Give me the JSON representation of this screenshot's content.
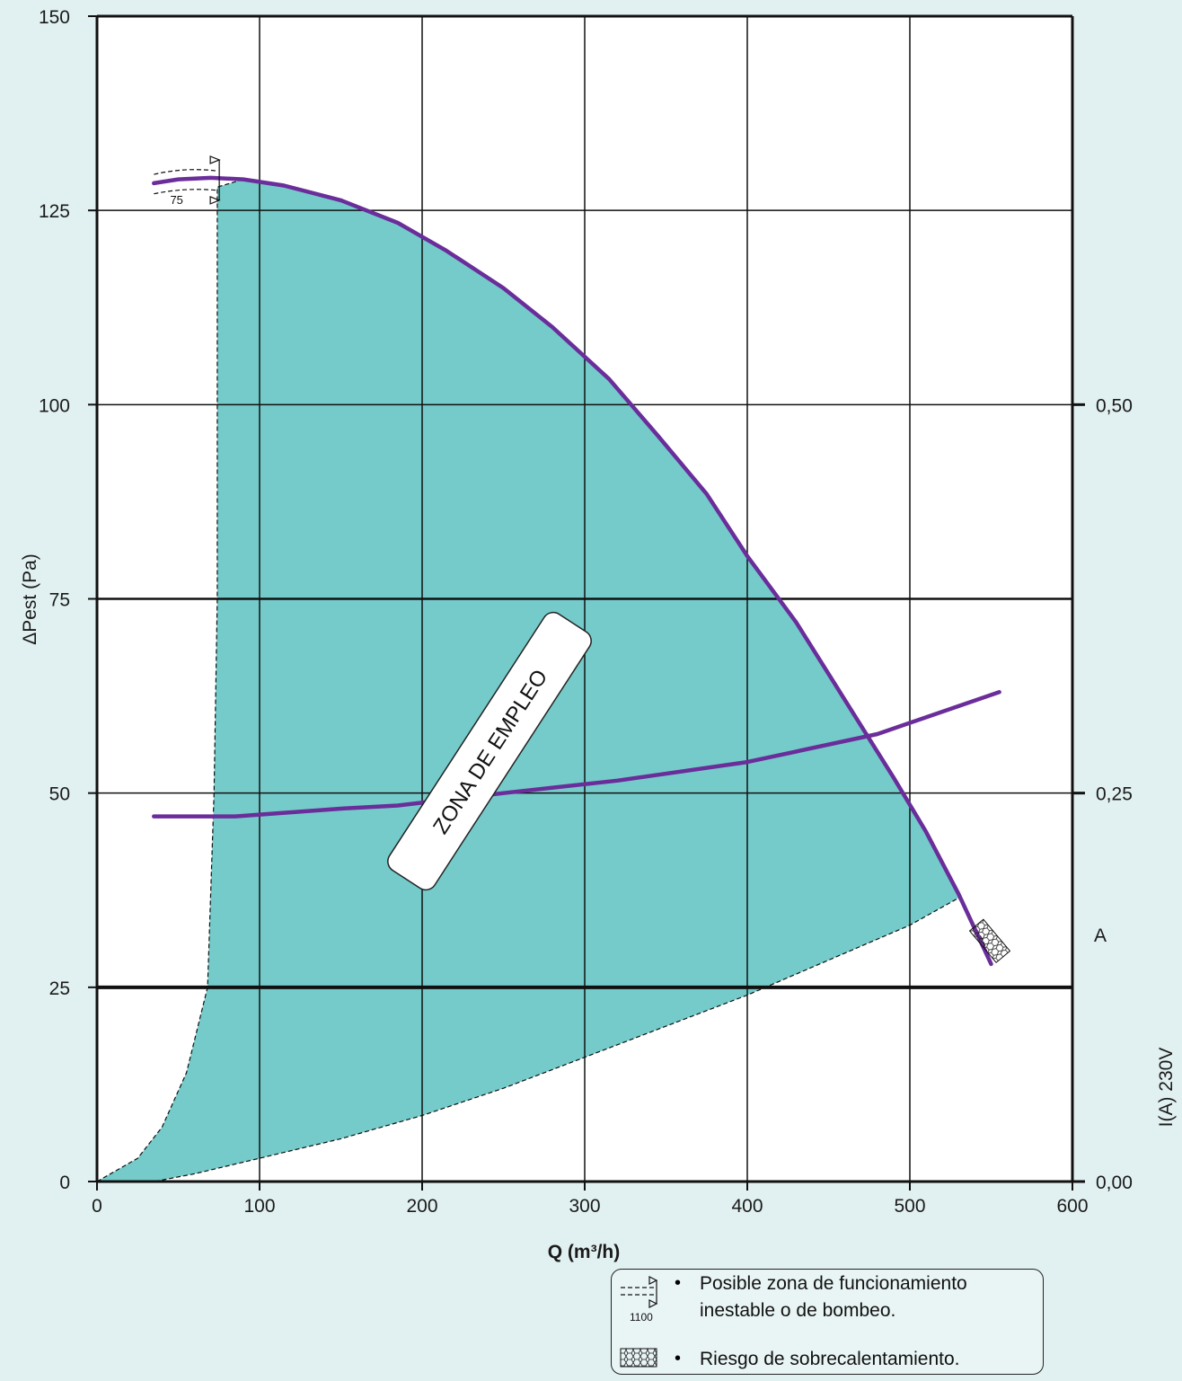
{
  "chart_data": {
    "type": "line",
    "title": "",
    "xlabel": "Q (m³/h)",
    "ylabel": "ΔPest (Pa)",
    "y2label": "I(A) 230V",
    "y2unit": "A",
    "xlim": [
      0,
      600
    ],
    "ylim": [
      0,
      150
    ],
    "y2lim": [
      0,
      0.75
    ],
    "x_ticks": [
      "0",
      "100",
      "200",
      "300",
      "400",
      "500",
      "600"
    ],
    "y_ticks": [
      "0",
      "25",
      "50",
      "75",
      "100",
      "125",
      "150"
    ],
    "y2_ticks": [
      "0,00",
      "0,25",
      "0,50"
    ],
    "grid": true,
    "zone_label": "ZONA DE EMPLEO",
    "series": [
      {
        "name": "",
        "axis": "left",
        "points": [
          [
            35,
            128.5
          ],
          [
            50,
            129
          ],
          [
            70,
            129.2
          ],
          [
            90,
            129
          ],
          [
            115,
            128.2
          ],
          [
            150,
            126.3
          ],
          [
            185,
            123.4
          ],
          [
            215,
            119.8
          ],
          [
            250,
            115
          ],
          [
            280,
            110
          ],
          [
            315,
            103.3
          ],
          [
            345,
            96
          ],
          [
            375,
            88.5
          ],
          [
            400,
            80.5
          ],
          [
            430,
            72
          ],
          [
            460,
            62
          ],
          [
            490,
            52
          ],
          [
            510,
            45
          ],
          [
            530,
            37
          ],
          [
            550,
            28
          ]
        ]
      },
      {
        "name": "",
        "axis": "right",
        "points": [
          [
            35,
            0.235
          ],
          [
            85,
            0.235
          ],
          [
            150,
            0.24
          ],
          [
            185,
            0.242
          ],
          [
            250,
            0.25
          ],
          [
            320,
            0.258
          ],
          [
            400,
            0.27
          ],
          [
            480,
            0.288
          ],
          [
            555,
            0.315
          ]
        ]
      }
    ],
    "zone_boundary": {
      "left": [
        [
          0,
          0
        ],
        [
          25,
          3
        ],
        [
          40,
          7
        ],
        [
          55,
          14
        ],
        [
          68,
          25
        ],
        [
          72,
          50
        ],
        [
          74,
          75
        ],
        [
          74,
          100
        ],
        [
          74,
          128
        ]
      ],
      "bottom": [
        [
          35,
          0
        ],
        [
          60,
          1
        ],
        [
          100,
          3
        ],
        [
          150,
          5.5
        ],
        [
          200,
          8.5
        ],
        [
          250,
          12
        ],
        [
          300,
          16
        ],
        [
          350,
          20
        ],
        [
          400,
          24
        ],
        [
          450,
          28.5
        ],
        [
          500,
          33
        ],
        [
          530,
          36.5
        ]
      ]
    },
    "overlay_labels": {
      "unstable_speed": "75"
    },
    "legend": [
      {
        "icon": "1100",
        "text": "Posible zona de funcionamiento",
        "text2": "inestable o de bombeo."
      },
      {
        "icon": "",
        "text": "Riesgo de sobrecalentamiento.",
        "text2": ""
      }
    ],
    "colors": {
      "curve": "#6a2d9a",
      "zone": "#74cbca",
      "background": "#e1f0f0",
      "plot_background": "#ffffff"
    }
  }
}
